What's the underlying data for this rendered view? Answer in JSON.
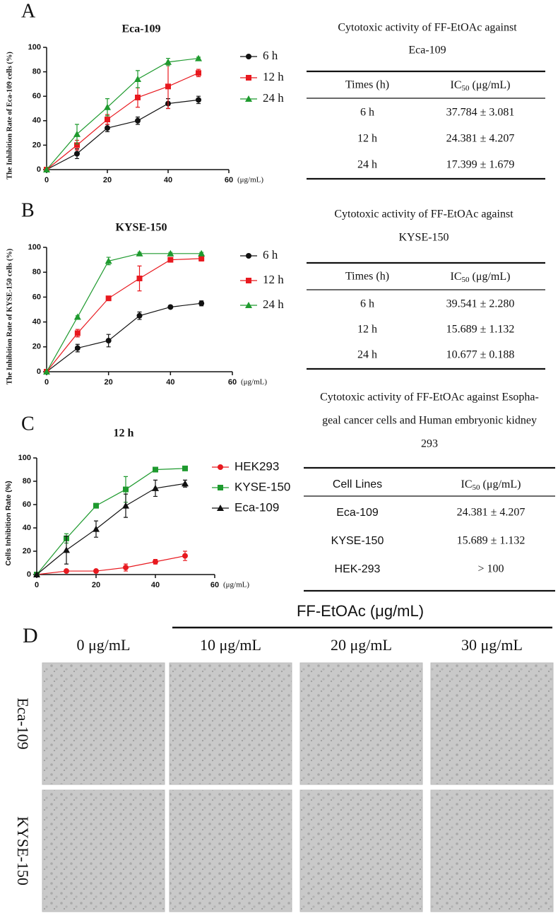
{
  "panel_labels": [
    "A",
    "B",
    "C",
    "D"
  ],
  "chart_data": [
    {
      "type": "line",
      "title": "Eca-109",
      "y_label": "The Inhibition Rate of Eca-109 cells (%)",
      "x_unit": "(μg/mL)",
      "x": [
        0,
        10,
        20,
        30,
        40,
        50
      ],
      "xlim": [
        0,
        60
      ],
      "xticks": [
        0,
        20,
        40,
        60
      ],
      "ylim": [
        0,
        100
      ],
      "yticks": [
        0,
        20,
        40,
        60,
        80,
        100
      ],
      "series": [
        {
          "name": "6 h",
          "color": "#111111",
          "marker": "circle",
          "values": [
            0,
            13,
            34,
            40,
            54,
            57
          ],
          "errors": [
            0,
            4,
            3,
            3,
            4,
            3
          ]
        },
        {
          "name": "12 h",
          "color": "#e8191f",
          "marker": "square",
          "values": [
            0,
            20,
            41,
            59,
            68,
            79
          ],
          "errors": [
            0,
            4,
            4,
            8,
            18,
            3
          ]
        },
        {
          "name": "24 h",
          "color": "#1e9a2e",
          "marker": "triangle",
          "values": [
            0,
            29,
            51,
            74,
            88,
            91
          ],
          "errors": [
            0,
            8,
            7,
            7,
            3,
            1
          ]
        }
      ]
    },
    {
      "type": "line",
      "title": "KYSE-150",
      "y_label": "The Inhibition Rate of KYSE-150 cells (%)",
      "x_unit": "(μg/mL)",
      "x": [
        0,
        10,
        20,
        30,
        40,
        50
      ],
      "xlim": [
        0,
        60
      ],
      "xticks": [
        0,
        20,
        40,
        60
      ],
      "ylim": [
        0,
        100
      ],
      "yticks": [
        0,
        20,
        40,
        60,
        80,
        100
      ],
      "series": [
        {
          "name": "6 h",
          "color": "#111111",
          "marker": "circle",
          "values": [
            0,
            19,
            25,
            45,
            52,
            55
          ],
          "errors": [
            0,
            3,
            5,
            3,
            1,
            2
          ]
        },
        {
          "name": "12 h",
          "color": "#e8191f",
          "marker": "square",
          "values": [
            0,
            31,
            59,
            75,
            90,
            91
          ],
          "errors": [
            0,
            3,
            1,
            10,
            1,
            2
          ]
        },
        {
          "name": "24 h",
          "color": "#1e9a2e",
          "marker": "triangle",
          "values": [
            0,
            44,
            89,
            95,
            95,
            95
          ],
          "errors": [
            0,
            1,
            3,
            1,
            1,
            1
          ]
        }
      ]
    },
    {
      "type": "line",
      "title": "12 h",
      "y_label": "Cells Inhibition Rate (%)",
      "x_unit": "(μg/mL)",
      "x": [
        0,
        10,
        20,
        30,
        40,
        50
      ],
      "xlim": [
        0,
        60
      ],
      "xticks": [
        0,
        20,
        40,
        60
      ],
      "ylim": [
        0,
        100
      ],
      "yticks": [
        0,
        20,
        40,
        60,
        80,
        100
      ],
      "series": [
        {
          "name": "HEK293",
          "color": "#e8191f",
          "marker": "circle",
          "values": [
            0,
            3,
            3,
            6,
            11,
            16
          ],
          "errors": [
            0,
            1,
            1,
            3,
            2,
            4
          ]
        },
        {
          "name": "KYSE-150",
          "color": "#1e9a2e",
          "marker": "square",
          "values": [
            0,
            31,
            59,
            73,
            90,
            91
          ],
          "errors": [
            0,
            4,
            2,
            11,
            1,
            1
          ]
        },
        {
          "name": "Eca-109",
          "color": "#111111",
          "marker": "triangle",
          "values": [
            0,
            21,
            39,
            59,
            74,
            78
          ],
          "errors": [
            0,
            12,
            7,
            10,
            7,
            3
          ]
        }
      ]
    }
  ],
  "tables": [
    {
      "title": [
        "Cytotoxic activity of FF-EtOAc against",
        "Eca-109"
      ],
      "headers": [
        "Times (h)",
        [
          "IC",
          "50",
          " (μg/mL)"
        ]
      ],
      "rows": [
        [
          "6 h",
          "37.784 ± 3.081"
        ],
        [
          "12 h",
          "24.381 ± 4.207"
        ],
        [
          "24 h",
          "17.399 ± 1.679"
        ]
      ]
    },
    {
      "title": [
        "Cytotoxic activity of FF-EtOAc against",
        "KYSE-150"
      ],
      "headers": [
        "Times (h)",
        [
          "IC",
          "50",
          " (μg/mL)"
        ]
      ],
      "rows": [
        [
          "6 h",
          "39.541 ± 2.280"
        ],
        [
          "12 h",
          "15.689 ± 1.132"
        ],
        [
          "24 h",
          "10.677 ± 0.188"
        ]
      ]
    },
    {
      "title": [
        "Cytotoxic activity of FF-EtOAc against Esopha-",
        "geal cancer cells and Human embryonic kidney",
        "293"
      ],
      "headers": [
        "Cell Lines",
        [
          "IC",
          "50",
          " (μg/mL)"
        ]
      ],
      "rows": [
        [
          "Eca-109",
          "24.381 ± 4.207"
        ],
        [
          "KYSE-150",
          "15.689 ± 1.132"
        ],
        [
          "HEK-293",
          "> 100"
        ]
      ]
    }
  ],
  "micrographs": {
    "header": "FF-EtOAc (μg/mL)",
    "columns": [
      "0 μg/mL",
      "10 μg/mL",
      "20 μg/mL",
      "30 μg/mL"
    ],
    "rows": [
      "Eca-109",
      "KYSE-150"
    ]
  }
}
